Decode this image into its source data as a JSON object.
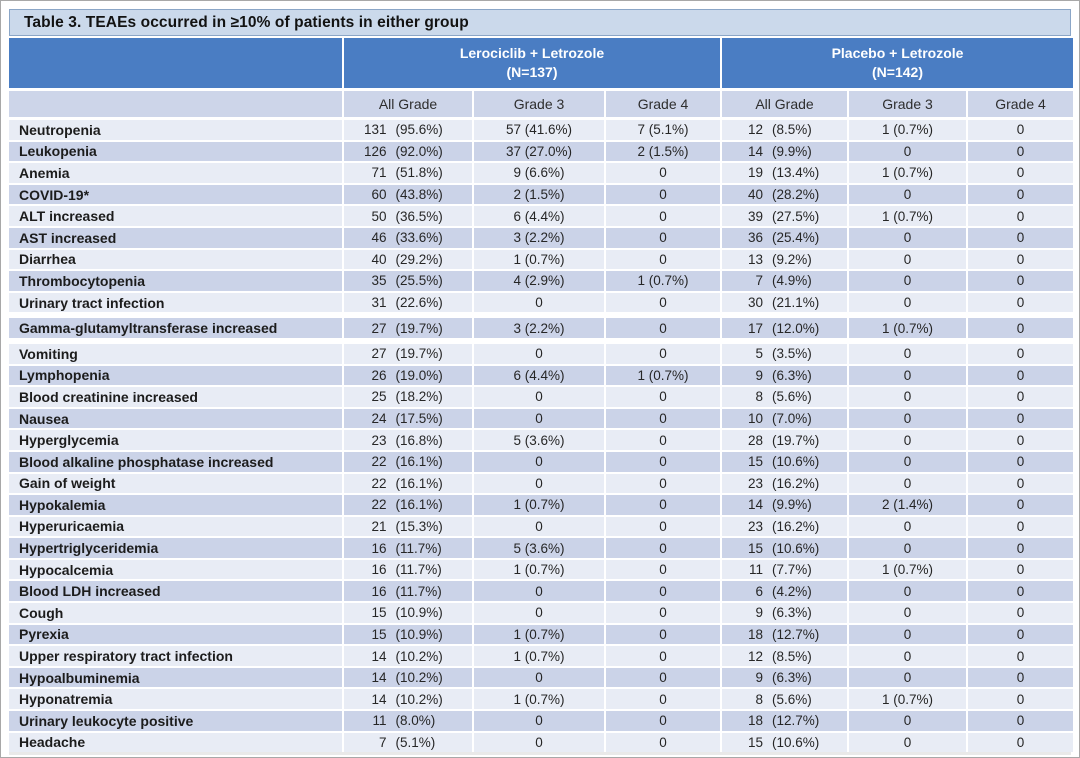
{
  "title": "Table 3. TEAEs occurred in ≥10% of patients in either group",
  "colors": {
    "band_blue": "#4a7dc3",
    "title_bg": "#cbd9eb",
    "subheader_bg": "#cdd5e9",
    "row_light": "#e8ecf5",
    "row_dark": "#cbd3e8"
  },
  "table": {
    "groups": [
      {
        "name": "Lerociclib + Letrozole",
        "n": "(N=137)"
      },
      {
        "name": "Placebo + Letrozole",
        "n": "(N=142)"
      }
    ],
    "subheaders": [
      "All Grade",
      "Grade 3",
      "Grade 4",
      "All Grade",
      "Grade 3",
      "Grade 4"
    ],
    "rows": [
      {
        "label": "Neutropenia",
        "c": [
          "131",
          "(95.6%)",
          "57 (41.6%)",
          "7 (5.1%)",
          "12",
          "(8.5%)",
          "1 (0.7%)",
          "0"
        ]
      },
      {
        "label": "Leukopenia",
        "c": [
          "126",
          "(92.0%)",
          "37 (27.0%)",
          "2 (1.5%)",
          "14",
          "(9.9%)",
          "0",
          "0"
        ]
      },
      {
        "label": "Anemia",
        "c": [
          "71",
          "(51.8%)",
          "9 (6.6%)",
          "0",
          "19",
          "(13.4%)",
          "1 (0.7%)",
          "0"
        ]
      },
      {
        "label": "COVID-19*",
        "c": [
          "60",
          "(43.8%)",
          "2 (1.5%)",
          "0",
          "40",
          "(28.2%)",
          "0",
          "0"
        ]
      },
      {
        "label": "ALT increased",
        "c": [
          "50",
          "(36.5%)",
          "6 (4.4%)",
          "0",
          "39",
          "(27.5%)",
          "1 (0.7%)",
          "0"
        ]
      },
      {
        "label": "AST increased",
        "c": [
          "46",
          "(33.6%)",
          "3 (2.2%)",
          "0",
          "36",
          "(25.4%)",
          "0",
          "0"
        ]
      },
      {
        "label": "Diarrhea",
        "c": [
          "40",
          "(29.2%)",
          "1 (0.7%)",
          "0",
          "13",
          "(9.2%)",
          "0",
          "0"
        ]
      },
      {
        "label": "Thrombocytopenia",
        "c": [
          "35",
          "(25.5%)",
          "4 (2.9%)",
          "1 (0.7%)",
          "7",
          "(4.9%)",
          "0",
          "0"
        ]
      },
      {
        "label": "Urinary tract infection",
        "c": [
          "31",
          "(22.6%)",
          "0",
          "0",
          "30",
          "(21.1%)",
          "0",
          "0"
        ]
      },
      {
        "label": "Gamma-glutamyltransferase increased",
        "gap": true,
        "c": [
          "27",
          "(19.7%)",
          "3 (2.2%)",
          "0",
          "17",
          "(12.0%)",
          "1 (0.7%)",
          "0"
        ]
      },
      {
        "label": "Vomiting",
        "c": [
          "27",
          "(19.7%)",
          "0",
          "0",
          "5",
          "(3.5%)",
          "0",
          "0"
        ]
      },
      {
        "label": "Lymphopenia",
        "c": [
          "26",
          "(19.0%)",
          "6 (4.4%)",
          "1 (0.7%)",
          "9",
          "(6.3%)",
          "0",
          "0"
        ]
      },
      {
        "label": "Blood creatinine increased",
        "c": [
          "25",
          "(18.2%)",
          "0",
          "0",
          "8",
          "(5.6%)",
          "0",
          "0"
        ]
      },
      {
        "label": "Nausea",
        "c": [
          "24",
          "(17.5%)",
          "0",
          "0",
          "10",
          "(7.0%)",
          "0",
          "0"
        ]
      },
      {
        "label": "Hyperglycemia",
        "c": [
          "23",
          "(16.8%)",
          "5 (3.6%)",
          "0",
          "28",
          "(19.7%)",
          "0",
          "0"
        ]
      },
      {
        "label": "Blood alkaline phosphatase increased",
        "c": [
          "22",
          "(16.1%)",
          "0",
          "0",
          "15",
          "(10.6%)",
          "0",
          "0"
        ]
      },
      {
        "label": "Gain of weight",
        "c": [
          "22",
          "(16.1%)",
          "0",
          "0",
          "23",
          "(16.2%)",
          "0",
          "0"
        ]
      },
      {
        "label": "Hypokalemia",
        "c": [
          "22",
          "(16.1%)",
          "1 (0.7%)",
          "0",
          "14",
          "(9.9%)",
          "2 (1.4%)",
          "0"
        ]
      },
      {
        "label": "Hyperuricaemia",
        "c": [
          "21",
          "(15.3%)",
          "0",
          "0",
          "23",
          "(16.2%)",
          "0",
          "0"
        ]
      },
      {
        "label": "Hypertriglyceridemia",
        "c": [
          "16",
          "(11.7%)",
          "5 (3.6%)",
          "0",
          "15",
          "(10.6%)",
          "0",
          "0"
        ]
      },
      {
        "label": "Hypocalcemia",
        "c": [
          "16",
          "(11.7%)",
          "1 (0.7%)",
          "0",
          "11",
          "(7.7%)",
          "1 (0.7%)",
          "0"
        ]
      },
      {
        "label": "Blood LDH increased",
        "c": [
          "16",
          "(11.7%)",
          "0",
          "0",
          "6",
          "(4.2%)",
          "0",
          "0"
        ]
      },
      {
        "label": "Cough",
        "c": [
          "15",
          "(10.9%)",
          "0",
          "0",
          "9",
          "(6.3%)",
          "0",
          "0"
        ]
      },
      {
        "label": "Pyrexia",
        "c": [
          "15",
          "(10.9%)",
          "1 (0.7%)",
          "0",
          "18",
          "(12.7%)",
          "0",
          "0"
        ]
      },
      {
        "label": "Upper respiratory tract infection",
        "c": [
          "14",
          "(10.2%)",
          "1 (0.7%)",
          "0",
          "12",
          "(8.5%)",
          "0",
          "0"
        ]
      },
      {
        "label": "Hypoalbuminemia",
        "c": [
          "14",
          "(10.2%)",
          "0",
          "0",
          "9",
          "(6.3%)",
          "0",
          "0"
        ]
      },
      {
        "label": "Hyponatremia",
        "c": [
          "14",
          "(10.2%)",
          "1 (0.7%)",
          "0",
          "8",
          "(5.6%)",
          "1 (0.7%)",
          "0"
        ]
      },
      {
        "label": "Urinary leukocyte positive",
        "c": [
          "11",
          "(8.0%)",
          "0",
          "0",
          "18",
          "(12.7%)",
          "0",
          "0"
        ]
      },
      {
        "label": "Headache",
        "c": [
          "7",
          "(5.1%)",
          "0",
          "0",
          "15",
          "(10.6%)",
          "0",
          "0"
        ]
      }
    ]
  }
}
